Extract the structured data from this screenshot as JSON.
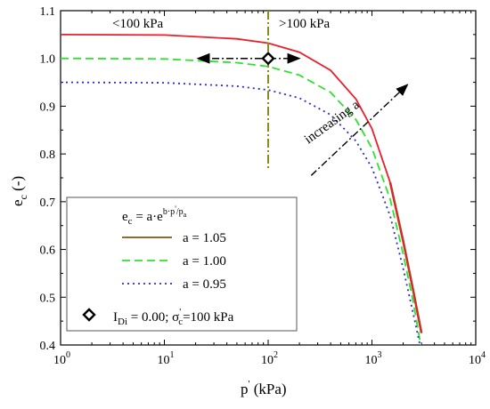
{
  "chart_data": {
    "type": "line",
    "x_scale": "log",
    "xlim": [
      1,
      10000
    ],
    "ylim": [
      0.4,
      1.1
    ],
    "x_ticks": [
      {
        "value": 1,
        "base": "10",
        "exp": "0"
      },
      {
        "value": 10,
        "base": "10",
        "exp": "1"
      },
      {
        "value": 100,
        "base": "10",
        "exp": "2"
      },
      {
        "value": 1000,
        "base": "10",
        "exp": "3"
      },
      {
        "value": 10000,
        "base": "10",
        "exp": "4"
      }
    ],
    "y_ticks": [
      {
        "value": 0.4,
        "label": "0.4"
      },
      {
        "value": 0.5,
        "label": "0.5"
      },
      {
        "value": 0.6,
        "label": "0.6"
      },
      {
        "value": 0.7,
        "label": "0.7"
      },
      {
        "value": 0.8,
        "label": "0.8"
      },
      {
        "value": 0.9,
        "label": "0.9"
      },
      {
        "value": 1.0,
        "label": "1.0"
      },
      {
        "value": 1.1,
        "label": "1.1"
      }
    ],
    "xlabel": {
      "main": "p",
      "prime": "'",
      "unit": " (kPa)"
    },
    "ylabel": {
      "main": "e",
      "sub": "c",
      "unit": " (-)"
    },
    "series": [
      {
        "name": "a = 1.05",
        "color": "#e8202a",
        "tail_color": "#7a5a1e",
        "dash": "solid",
        "x": [
          1,
          10,
          50,
          100,
          200,
          400,
          700,
          1000,
          1500,
          2000,
          2500,
          3000
        ],
        "y": [
          1.05,
          1.049,
          1.041,
          1.032,
          1.013,
          0.975,
          0.915,
          0.853,
          0.74,
          0.617,
          0.513,
          0.425
        ]
      },
      {
        "name": "a = 1.00",
        "color": "#2ee22e",
        "dash": "dashed",
        "x": [
          1,
          10,
          50,
          100,
          200,
          400,
          700,
          1000,
          1500,
          2000,
          2500,
          2950
        ],
        "y": [
          1.0,
          0.999,
          0.991,
          0.983,
          0.965,
          0.929,
          0.872,
          0.812,
          0.705,
          0.59,
          0.49,
          0.4
        ]
      },
      {
        "name": "a = 0.95",
        "color": "#2a2ad0",
        "dash": "dotted",
        "x": [
          1,
          10,
          50,
          100,
          200,
          400,
          700,
          1000,
          1500,
          2000,
          2500,
          2900
        ],
        "y": [
          0.95,
          0.949,
          0.942,
          0.934,
          0.917,
          0.882,
          0.827,
          0.771,
          0.67,
          0.56,
          0.465,
          0.4
        ]
      }
    ],
    "marker": {
      "x": 100,
      "y": 1.0,
      "label": "I",
      "label_sub": "Di",
      "label_rest": " = 0.00; σ",
      "label_sigma_sup": "'",
      "label_sigma_sub": "c",
      "label_tail": "=100 kPa"
    },
    "threshold_x": 100,
    "regions": {
      "left": "<100 kPa",
      "right": ">100 kPa"
    },
    "annotation": "increasing a",
    "legend": {
      "position": "bottom-left",
      "title": {
        "e": "e",
        "e_sub": "c",
        "eq": " = a·e",
        "exp_b": "b·p",
        "exp_prime": "'",
        "exp_slash": "/p",
        "exp_sub": "a"
      }
    },
    "colors": {
      "threshold_line": "#8b8b1e",
      "arrow": "#000000"
    }
  }
}
